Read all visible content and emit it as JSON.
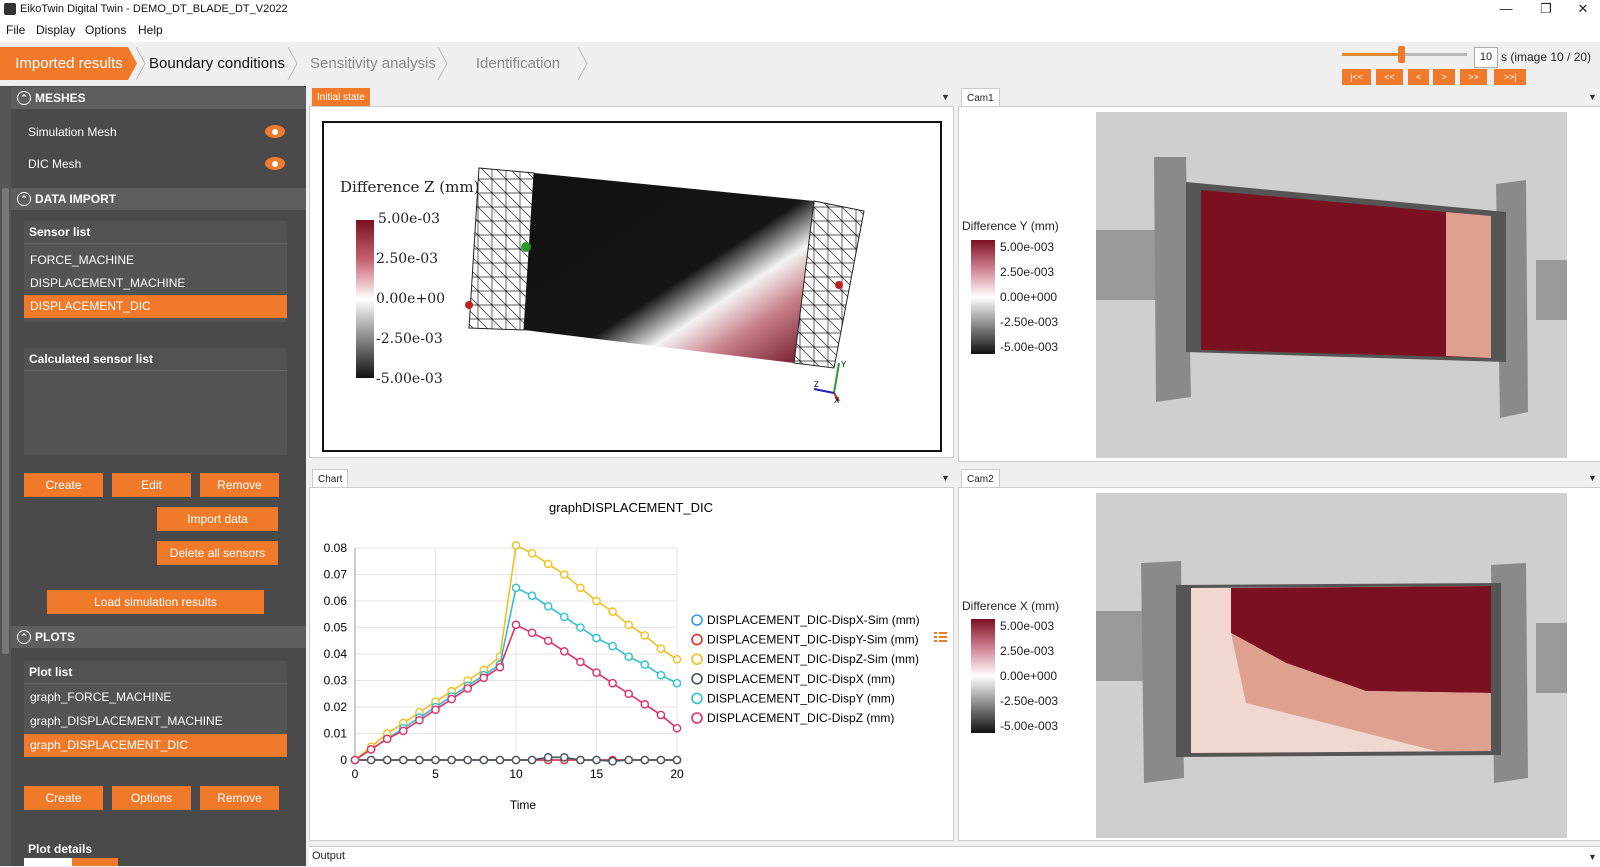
{
  "window": {
    "title": "EikoTwin Digital Twin - DEMO_DT_BLADE_DT_V2022",
    "minimize": "—",
    "maximize": "❐",
    "close": "✕"
  },
  "menu": [
    "File",
    "Display",
    "Options",
    "Help"
  ],
  "steps": [
    "Imported results",
    "Boundary conditions",
    "Sensitivity analysis",
    "Identification"
  ],
  "time": {
    "value": "10",
    "label": "s (image 10 / 20)",
    "position": 0.47,
    "buttons": [
      "|<<",
      "<<",
      "<",
      ">",
      ">>",
      ">>|"
    ]
  },
  "left": {
    "meshes": {
      "title": "MESHES",
      "items": [
        "Simulation Mesh",
        "DIC Mesh"
      ]
    },
    "data_import": {
      "title": "DATA IMPORT",
      "sensor_list_title": "Sensor list",
      "sensors": [
        "FORCE_MACHINE",
        "DISPLACEMENT_MACHINE",
        "DISPLACEMENT_DIC"
      ],
      "calc_list_title": "Calculated sensor list",
      "btn_create": "Create",
      "btn_edit": "Edit",
      "btn_remove": "Remove",
      "btn_import": "Import data",
      "btn_delete_all": "Delete all sensors",
      "btn_load_sim": "Load simulation results"
    },
    "plots": {
      "title": "PLOTS",
      "plot_list_title": "Plot list",
      "plots": [
        "graph_FORCE_MACHINE",
        "graph_DISPLACEMENT_MACHINE",
        "graph_DISPLACEMENT_DIC"
      ],
      "btn_create": "Create",
      "btn_options": "Options",
      "btn_remove": "Remove",
      "details_title": "Plot details"
    }
  },
  "panels": {
    "initial_state": {
      "tab": "Initial state",
      "legend_title": "Difference Z (mm)",
      "ticks": [
        "5.00e-03",
        "2.50e-03",
        "0.00e+00",
        "-2.50e-03",
        "-5.00e-03"
      ],
      "axes": [
        "Y",
        "Z",
        "X"
      ]
    },
    "cam1": {
      "tab": "Cam1",
      "legend_title": "Difference Y (mm)",
      "ticks": [
        "5.00e-003",
        "2.50e-003",
        "0.00e+000",
        "-2.50e-003",
        "-5.00e-003"
      ]
    },
    "cam2": {
      "tab": "Cam2",
      "legend_title": "Difference X (mm)",
      "ticks": [
        "5.00e-003",
        "2.50e-003",
        "0.00e+000",
        "-2.50e-003",
        "-5.00e-003"
      ]
    },
    "chart": {
      "tab": "Chart"
    },
    "output": {
      "tab": "Output"
    }
  },
  "colors": {
    "accent": "#f07a2a",
    "panel_dark": "#4a4a4a",
    "mesh_dark_red": "#7a1020"
  },
  "chart_data": {
    "type": "line",
    "title": "graphDISPLACEMENT_DIC",
    "xlabel": "Time",
    "ylabel": "",
    "xlim": [
      0,
      20
    ],
    "ylim": [
      0,
      0.08
    ],
    "xticks": [
      0,
      5,
      10,
      15,
      20
    ],
    "yticks": [
      0,
      0.01,
      0.02,
      0.03,
      0.04,
      0.05,
      0.06,
      0.07,
      0.08
    ],
    "x": [
      0,
      1,
      2,
      3,
      4,
      5,
      6,
      7,
      8,
      9,
      10,
      11,
      12,
      13,
      14,
      15,
      16,
      17,
      18,
      19,
      20
    ],
    "series": [
      {
        "name": "DISPLACEMENT_DIC-DispX-Sim (mm)",
        "color": "#2a9fd8",
        "values": [
          0,
          0,
          0,
          0,
          0,
          0,
          0,
          0,
          0,
          0,
          0,
          0,
          0,
          0,
          0,
          0,
          0,
          0,
          0,
          0,
          0
        ]
      },
      {
        "name": "DISPLACEMENT_DIC-DispY-Sim (mm)",
        "color": "#e03030",
        "values": [
          0,
          0,
          0,
          0,
          0,
          0,
          0,
          0,
          0,
          0,
          0,
          0,
          0,
          0,
          0,
          0,
          0,
          0,
          0,
          0,
          0
        ]
      },
      {
        "name": "DISPLACEMENT_DIC-DispZ-Sim (mm)",
        "color": "#f0c020",
        "values": [
          0,
          0.005,
          0.01,
          0.014,
          0.018,
          0.022,
          0.026,
          0.03,
          0.034,
          0.039,
          0.081,
          0.078,
          0.074,
          0.07,
          0.065,
          0.06,
          0.056,
          0.051,
          0.047,
          0.042,
          0.038
        ]
      },
      {
        "name": "DISPLACEMENT_DIC-DispX (mm)",
        "color": "#445566",
        "values": [
          0,
          0,
          0,
          0,
          0,
          0,
          0,
          0,
          0,
          0,
          0,
          0,
          0.001,
          0.001,
          0,
          0,
          -0.0005,
          0,
          0,
          0,
          0
        ]
      },
      {
        "name": "DISPLACEMENT_DIC-DispY (mm)",
        "color": "#30c0d0",
        "values": [
          0,
          0.004,
          0.008,
          0.012,
          0.016,
          0.02,
          0.024,
          0.028,
          0.032,
          0.036,
          0.065,
          0.062,
          0.058,
          0.054,
          0.05,
          0.046,
          0.043,
          0.039,
          0.036,
          0.032,
          0.029
        ]
      },
      {
        "name": "DISPLACEMENT_DIC-DispZ (mm)",
        "color": "#e0306a",
        "values": [
          0,
          0.004,
          0.008,
          0.011,
          0.015,
          0.019,
          0.023,
          0.027,
          0.031,
          0.035,
          0.051,
          0.048,
          0.045,
          0.041,
          0.037,
          0.033,
          0.029,
          0.025,
          0.021,
          0.017,
          0.012
        ]
      }
    ]
  }
}
